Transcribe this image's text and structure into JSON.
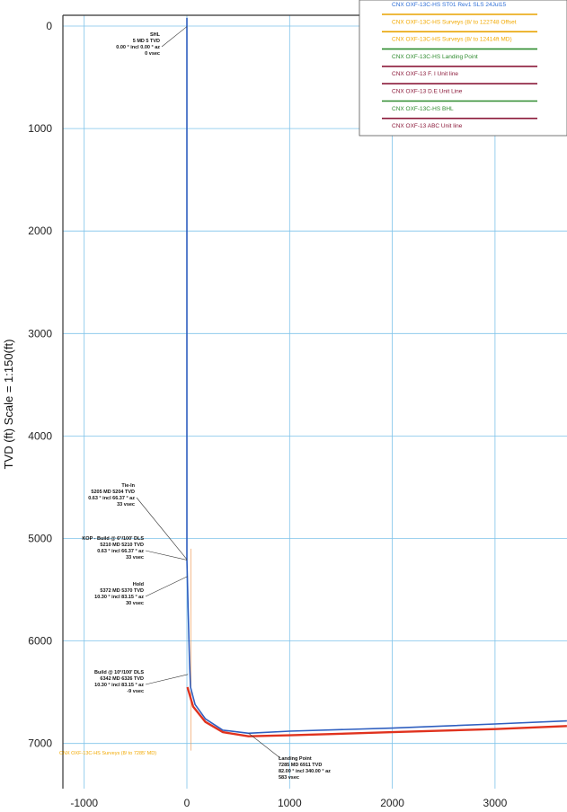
{
  "chart_data": {
    "type": "line",
    "ylabel": "TVD (ft) Scale = 1:150(ft)",
    "xlim": [
      -1300,
      3700
    ],
    "ylim": [
      0,
      7500
    ],
    "y_inverted": true,
    "grid": true,
    "x_ticks": [
      "-1000",
      "0",
      "1000",
      "2000",
      "3000"
    ],
    "y_ticks": [
      "0",
      "1000",
      "2000",
      "3000",
      "4000",
      "5000",
      "6000",
      "7000"
    ],
    "series": [
      {
        "name": "CNX OXF-13C-HS ST01 Rev1 SLS 24Jul15",
        "color": "#2f5fc0",
        "points": [
          [
            0,
            -80
          ],
          [
            0,
            5204
          ],
          [
            12,
            5700
          ],
          [
            25,
            6200
          ],
          [
            35,
            6450
          ],
          [
            80,
            6620
          ],
          [
            180,
            6760
          ],
          [
            350,
            6870
          ],
          [
            600,
            6900
          ],
          [
            1000,
            6880
          ],
          [
            2000,
            6850
          ],
          [
            3000,
            6810
          ],
          [
            3700,
            6780
          ]
        ]
      },
      {
        "name": "CNX OXF-13C-HS Surveys",
        "color": "#e0321e",
        "points": [
          [
            5,
            6450
          ],
          [
            60,
            6640
          ],
          [
            180,
            6790
          ],
          [
            350,
            6890
          ],
          [
            600,
            6930
          ],
          [
            1000,
            6920
          ],
          [
            2000,
            6890
          ],
          [
            3000,
            6860
          ],
          [
            3700,
            6830
          ]
        ]
      }
    ],
    "annotations": [
      {
        "lines": [
          "SHL",
          "5 MD 5 TVD",
          "0.00 ° incl 0.00 ° az",
          "0 vsec"
        ],
        "x": 0,
        "y": 5
      },
      {
        "lines": [
          "Tie-In",
          "5205 MD 5204 TVD",
          "0.63 ° incl 66.37 ° az",
          "33 vsec"
        ],
        "x": 0,
        "y": 5204
      },
      {
        "lines": [
          "KOP - Build @ 6°/100' DLS",
          "5210 MD 5210 TVD",
          "0.63 ° incl 66.37 ° az",
          "33 vsec"
        ],
        "x": 0,
        "y": 5210
      },
      {
        "lines": [
          "Hold",
          "5372 MD 5370 TVD",
          "10.30 ° incl 83.15 ° az",
          "30 vsec"
        ],
        "x": 5,
        "y": 5370
      },
      {
        "lines": [
          "Build @ 10°/100' DLS",
          "6342 MD 6326 TVD",
          "10.30 ° incl 83.15 ° az",
          "-9 vsec"
        ],
        "x": 10,
        "y": 6326
      },
      {
        "lines": [
          "Landing Point",
          "7285 MD 6911 TVD",
          "82.00 ° incl 340.00 ° az",
          "583 vsec"
        ],
        "x": 600,
        "y": 6900
      }
    ],
    "bottom_note": "CNX OXF-13C-HS Surveys (8/ to 7285' MD)",
    "legend": {
      "placement": "top-right",
      "entries": [
        {
          "label": "CNX OXF-13C-HS ST01 Rev1 SLS 24Jul15",
          "color": "#2f6fd6",
          "line": "#e8a300"
        },
        {
          "label": "CNX OXF-13C-HS Surveys (8/ to 122748 Offset",
          "color": "#f2a900",
          "line": "#e8a300"
        },
        {
          "label": "CNX OXF-13C-HS Surveys (8/ to 12414ft MD)",
          "color": "#f2a900",
          "line": "#2e8b2e"
        },
        {
          "label": "CNX OXF-13C-HS Landing Point",
          "color": "#2e8b2e",
          "line": "#8b1a3a"
        },
        {
          "label": "CNX OXF-13 F. I Unit line",
          "color": "#8b1a3a",
          "line": "#8b1a3a"
        },
        {
          "label": "CNX OXF-13 D.E Unit Line",
          "color": "#8b1a3a",
          "line": "#2e8b2e"
        },
        {
          "label": "CNX OXF-13C-HS BHL",
          "color": "#2e8b2e",
          "line": "#8b1a3a"
        },
        {
          "label": "CNX OXF-13 ABC Unit line",
          "color": "#8b1a3a",
          "line": null
        }
      ]
    }
  }
}
